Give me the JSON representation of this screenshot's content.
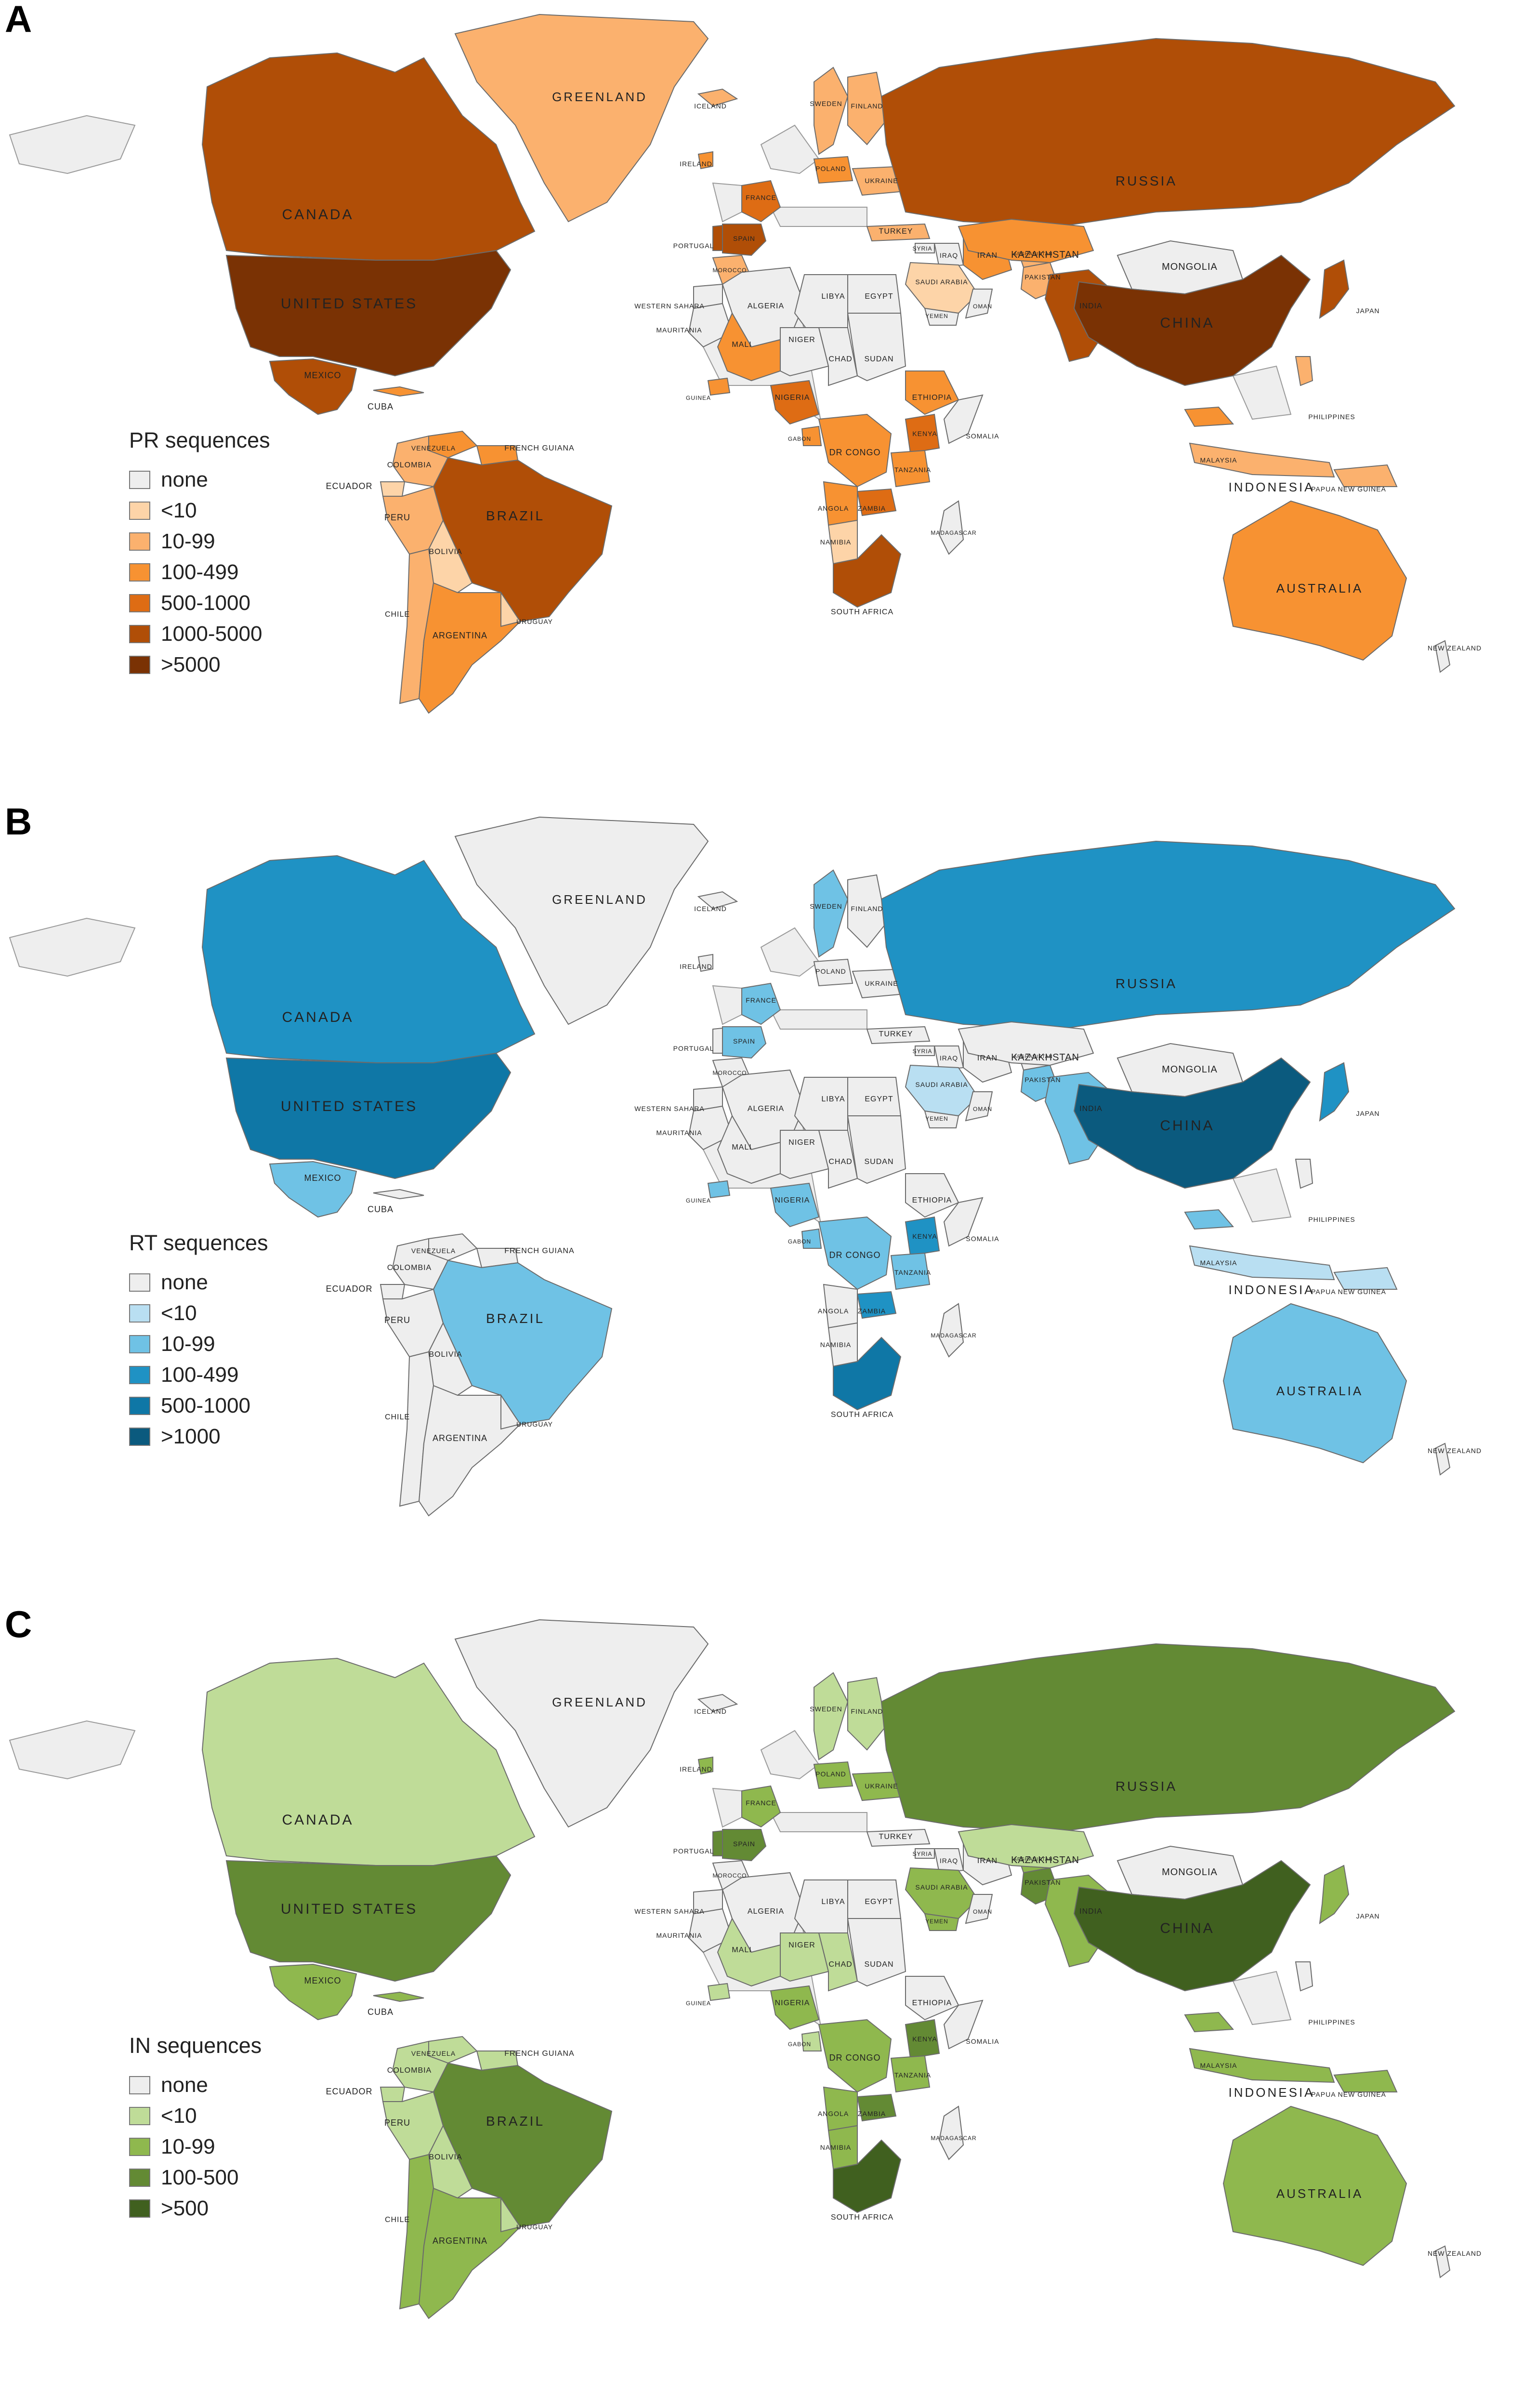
{
  "panels": [
    {
      "letter": "A",
      "legend_title": "PR sequences",
      "legend": [
        {
          "label": "none",
          "color": "#eeeeee"
        },
        {
          "label": "<10",
          "color": "#fdd4a8"
        },
        {
          "label": "10-99",
          "color": "#fbb16e"
        },
        {
          "label": "100-499",
          "color": "#f79232"
        },
        {
          "label": "500-1000",
          "color": "#de6c14"
        },
        {
          "label": "1000-5000",
          "color": "#b04e07"
        },
        {
          "label": ">5000",
          "color": "#7a3204"
        }
      ],
      "countries": [
        {
          "name": "GREENLAND",
          "cat": 2
        },
        {
          "name": "CANADA",
          "cat": 5
        },
        {
          "name": "UNITED STATES",
          "cat": 6
        },
        {
          "name": "MEXICO",
          "cat": 5
        },
        {
          "name": "CUBA",
          "cat": 3
        },
        {
          "name": "VENEZUELA",
          "cat": 3
        },
        {
          "name": "COLOMBIA",
          "cat": 2
        },
        {
          "name": "FRENCH GUIANA",
          "cat": 3
        },
        {
          "name": "ECUADOR",
          "cat": 1
        },
        {
          "name": "PERU",
          "cat": 2
        },
        {
          "name": "BRAZIL",
          "cat": 5
        },
        {
          "name": "BOLIVIA",
          "cat": 1
        },
        {
          "name": "CHILE",
          "cat": 2
        },
        {
          "name": "ARGENTINA",
          "cat": 3
        },
        {
          "name": "URUGUAY",
          "cat": 1
        },
        {
          "name": "ICELAND",
          "cat": 2
        },
        {
          "name": "IRELAND",
          "cat": 3
        },
        {
          "name": "SWEDEN",
          "cat": 2
        },
        {
          "name": "FINLAND",
          "cat": 2
        },
        {
          "name": "POLAND",
          "cat": 3
        },
        {
          "name": "UKRAINE",
          "cat": 2
        },
        {
          "name": "FRANCE",
          "cat": 4
        },
        {
          "name": "PORTUGAL",
          "cat": 5
        },
        {
          "name": "SPAIN",
          "cat": 5
        },
        {
          "name": "TURKEY",
          "cat": 2
        },
        {
          "name": "SYRIA",
          "cat": 0
        },
        {
          "name": "IRAQ",
          "cat": 0
        },
        {
          "name": "IRAN",
          "cat": 3
        },
        {
          "name": "SAUDI ARABIA",
          "cat": 1
        },
        {
          "name": "YEMEN",
          "cat": 0
        },
        {
          "name": "OMAN",
          "cat": 0
        },
        {
          "name": "AFGHANISTAN",
          "cat": 2
        },
        {
          "name": "PAKISTAN",
          "cat": 2
        },
        {
          "name": "INDIA",
          "cat": 5
        },
        {
          "name": "RUSSIA",
          "cat": 5
        },
        {
          "name": "KAZAKHSTAN",
          "cat": 3
        },
        {
          "name": "MONGOLIA",
          "cat": 0
        },
        {
          "name": "CHINA",
          "cat": 6
        },
        {
          "name": "JAPAN",
          "cat": 5
        },
        {
          "name": "PHILIPPINES",
          "cat": 2
        },
        {
          "name": "MALAYSIA",
          "cat": 3
        },
        {
          "name": "INDONESIA",
          "cat": 2
        },
        {
          "name": "PAPUA NEW GUINEA",
          "cat": 2
        },
        {
          "name": "AUSTRALIA",
          "cat": 3
        },
        {
          "name": "NEW ZEALAND",
          "cat": 0
        },
        {
          "name": "MOROCCO",
          "cat": 2
        },
        {
          "name": "WESTERN SAHARA",
          "cat": 0
        },
        {
          "name": "ALGERIA",
          "cat": 0
        },
        {
          "name": "LIBYA",
          "cat": 0
        },
        {
          "name": "EGYPT",
          "cat": 0
        },
        {
          "name": "MAURITANIA",
          "cat": 0
        },
        {
          "name": "MALI",
          "cat": 3
        },
        {
          "name": "NIGER",
          "cat": 0
        },
        {
          "name": "CHAD",
          "cat": 0
        },
        {
          "name": "SUDAN",
          "cat": 0
        },
        {
          "name": "NIGERIA",
          "cat": 4
        },
        {
          "name": "ETHIOPIA",
          "cat": 3
        },
        {
          "name": "SOMALIA",
          "cat": 0
        },
        {
          "name": "KENYA",
          "cat": 4
        },
        {
          "name": "DR CONGO",
          "cat": 3
        },
        {
          "name": "TANZANIA",
          "cat": 3
        },
        {
          "name": "ANGOLA",
          "cat": 3
        },
        {
          "name": "ZAMBIA",
          "cat": 4
        },
        {
          "name": "NAMIBIA",
          "cat": 1
        },
        {
          "name": "MADAGASCAR",
          "cat": 0
        },
        {
          "name": "SOUTH AFRICA",
          "cat": 5
        },
        {
          "name": "GABON",
          "cat": 3
        },
        {
          "name": "GUINEA",
          "cat": 3
        }
      ]
    },
    {
      "letter": "B",
      "legend_title": "RT sequences",
      "legend": [
        {
          "label": "none",
          "color": "#eeeeee"
        },
        {
          "label": "<10",
          "color": "#b9dff2"
        },
        {
          "label": "10-99",
          "color": "#6fc2e5"
        },
        {
          "label": "100-499",
          "color": "#1f92c4"
        },
        {
          "label": "500-1000",
          "color": "#0f77a6"
        },
        {
          "label": ">1000",
          "color": "#0b5a7e"
        }
      ],
      "countries": [
        {
          "name": "GREENLAND",
          "cat": 0
        },
        {
          "name": "CANADA",
          "cat": 3
        },
        {
          "name": "UNITED STATES",
          "cat": 4
        },
        {
          "name": "MEXICO",
          "cat": 2
        },
        {
          "name": "CUBA",
          "cat": 0
        },
        {
          "name": "VENEZUELA",
          "cat": 0
        },
        {
          "name": "COLOMBIA",
          "cat": 0
        },
        {
          "name": "FRENCH GUIANA",
          "cat": 0
        },
        {
          "name": "ECUADOR",
          "cat": 0
        },
        {
          "name": "PERU",
          "cat": 0
        },
        {
          "name": "BRAZIL",
          "cat": 2
        },
        {
          "name": "BOLIVIA",
          "cat": 0
        },
        {
          "name": "CHILE",
          "cat": 0
        },
        {
          "name": "ARGENTINA",
          "cat": 0
        },
        {
          "name": "URUGUAY",
          "cat": 0
        },
        {
          "name": "ICELAND",
          "cat": 0
        },
        {
          "name": "IRELAND",
          "cat": 0
        },
        {
          "name": "SWEDEN",
          "cat": 2
        },
        {
          "name": "FINLAND",
          "cat": 0
        },
        {
          "name": "POLAND",
          "cat": 0
        },
        {
          "name": "UKRAINE",
          "cat": 0
        },
        {
          "name": "FRANCE",
          "cat": 2
        },
        {
          "name": "PORTUGAL",
          "cat": 0
        },
        {
          "name": "SPAIN",
          "cat": 2
        },
        {
          "name": "TURKEY",
          "cat": 0
        },
        {
          "name": "SYRIA",
          "cat": 0
        },
        {
          "name": "IRAQ",
          "cat": 0
        },
        {
          "name": "IRAN",
          "cat": 0
        },
        {
          "name": "SAUDI ARABIA",
          "cat": 1
        },
        {
          "name": "YEMEN",
          "cat": 0
        },
        {
          "name": "OMAN",
          "cat": 0
        },
        {
          "name": "AFGHANISTAN",
          "cat": 0
        },
        {
          "name": "PAKISTAN",
          "cat": 2
        },
        {
          "name": "INDIA",
          "cat": 2
        },
        {
          "name": "RUSSIA",
          "cat": 3
        },
        {
          "name": "KAZAKHSTAN",
          "cat": 0
        },
        {
          "name": "MONGOLIA",
          "cat": 0
        },
        {
          "name": "CHINA",
          "cat": 5
        },
        {
          "name": "JAPAN",
          "cat": 3
        },
        {
          "name": "PHILIPPINES",
          "cat": 0
        },
        {
          "name": "MALAYSIA",
          "cat": 2
        },
        {
          "name": "INDONESIA",
          "cat": 1
        },
        {
          "name": "PAPUA NEW GUINEA",
          "cat": 1
        },
        {
          "name": "AUSTRALIA",
          "cat": 2
        },
        {
          "name": "NEW ZEALAND",
          "cat": 0
        },
        {
          "name": "MOROCCO",
          "cat": 0
        },
        {
          "name": "WESTERN SAHARA",
          "cat": 0
        },
        {
          "name": "ALGERIA",
          "cat": 0
        },
        {
          "name": "LIBYA",
          "cat": 0
        },
        {
          "name": "EGYPT",
          "cat": 0
        },
        {
          "name": "MAURITANIA",
          "cat": 0
        },
        {
          "name": "MALI",
          "cat": 0
        },
        {
          "name": "NIGER",
          "cat": 0
        },
        {
          "name": "CHAD",
          "cat": 0
        },
        {
          "name": "SUDAN",
          "cat": 0
        },
        {
          "name": "NIGERIA",
          "cat": 2
        },
        {
          "name": "ETHIOPIA",
          "cat": 0
        },
        {
          "name": "SOMALIA",
          "cat": 0
        },
        {
          "name": "KENYA",
          "cat": 3
        },
        {
          "name": "DR CONGO",
          "cat": 2
        },
        {
          "name": "TANZANIA",
          "cat": 2
        },
        {
          "name": "ANGOLA",
          "cat": 0
        },
        {
          "name": "ZAMBIA",
          "cat": 3
        },
        {
          "name": "NAMIBIA",
          "cat": 0
        },
        {
          "name": "MADAGASCAR",
          "cat": 0
        },
        {
          "name": "SOUTH AFRICA",
          "cat": 4
        },
        {
          "name": "GABON",
          "cat": 2
        },
        {
          "name": "GUINEA",
          "cat": 2
        }
      ]
    },
    {
      "letter": "C",
      "legend_title": "IN sequences",
      "legend": [
        {
          "label": "none",
          "color": "#eeeeee"
        },
        {
          "label": "<10",
          "color": "#bfdc98"
        },
        {
          "label": "10-99",
          "color": "#8fb84e"
        },
        {
          "label": "100-500",
          "color": "#638a34"
        },
        {
          "label": ">500",
          "color": "#40601f"
        }
      ],
      "countries": [
        {
          "name": "GREENLAND",
          "cat": 0
        },
        {
          "name": "CANADA",
          "cat": 1
        },
        {
          "name": "UNITED STATES",
          "cat": 3
        },
        {
          "name": "MEXICO",
          "cat": 2
        },
        {
          "name": "CUBA",
          "cat": 2
        },
        {
          "name": "VENEZUELA",
          "cat": 1
        },
        {
          "name": "COLOMBIA",
          "cat": 1
        },
        {
          "name": "FRENCH GUIANA",
          "cat": 1
        },
        {
          "name": "ECUADOR",
          "cat": 1
        },
        {
          "name": "PERU",
          "cat": 1
        },
        {
          "name": "BRAZIL",
          "cat": 3
        },
        {
          "name": "BOLIVIA",
          "cat": 1
        },
        {
          "name": "CHILE",
          "cat": 2
        },
        {
          "name": "ARGENTINA",
          "cat": 2
        },
        {
          "name": "URUGUAY",
          "cat": 1
        },
        {
          "name": "ICELAND",
          "cat": 0
        },
        {
          "name": "IRELAND",
          "cat": 2
        },
        {
          "name": "SWEDEN",
          "cat": 1
        },
        {
          "name": "FINLAND",
          "cat": 1
        },
        {
          "name": "POLAND",
          "cat": 2
        },
        {
          "name": "UKRAINE",
          "cat": 2
        },
        {
          "name": "FRANCE",
          "cat": 2
        },
        {
          "name": "PORTUGAL",
          "cat": 3
        },
        {
          "name": "SPAIN",
          "cat": 3
        },
        {
          "name": "TURKEY",
          "cat": 0
        },
        {
          "name": "SYRIA",
          "cat": 0
        },
        {
          "name": "IRAQ",
          "cat": 0
        },
        {
          "name": "IRAN",
          "cat": 0
        },
        {
          "name": "SAUDI ARABIA",
          "cat": 2
        },
        {
          "name": "YEMEN",
          "cat": 2
        },
        {
          "name": "OMAN",
          "cat": 0
        },
        {
          "name": "AFGHANISTAN",
          "cat": 2
        },
        {
          "name": "PAKISTAN",
          "cat": 3
        },
        {
          "name": "INDIA",
          "cat": 2
        },
        {
          "name": "RUSSIA",
          "cat": 3
        },
        {
          "name": "KAZAKHSTAN",
          "cat": 1
        },
        {
          "name": "MONGOLIA",
          "cat": 0
        },
        {
          "name": "CHINA",
          "cat": 4
        },
        {
          "name": "JAPAN",
          "cat": 2
        },
        {
          "name": "PHILIPPINES",
          "cat": 0
        },
        {
          "name": "MALAYSIA",
          "cat": 2
        },
        {
          "name": "INDONESIA",
          "cat": 2
        },
        {
          "name": "PAPUA NEW GUINEA",
          "cat": 2
        },
        {
          "name": "AUSTRALIA",
          "cat": 2
        },
        {
          "name": "NEW ZEALAND",
          "cat": 0
        },
        {
          "name": "MOROCCO",
          "cat": 0
        },
        {
          "name": "WESTERN SAHARA",
          "cat": 0
        },
        {
          "name": "ALGERIA",
          "cat": 0
        },
        {
          "name": "LIBYA",
          "cat": 0
        },
        {
          "name": "EGYPT",
          "cat": 0
        },
        {
          "name": "MAURITANIA",
          "cat": 0
        },
        {
          "name": "MALI",
          "cat": 1
        },
        {
          "name": "NIGER",
          "cat": 1
        },
        {
          "name": "CHAD",
          "cat": 1
        },
        {
          "name": "SUDAN",
          "cat": 0
        },
        {
          "name": "NIGERIA",
          "cat": 2
        },
        {
          "name": "ETHIOPIA",
          "cat": 0
        },
        {
          "name": "SOMALIA",
          "cat": 0
        },
        {
          "name": "KENYA",
          "cat": 3
        },
        {
          "name": "DR CONGO",
          "cat": 2
        },
        {
          "name": "TANZANIA",
          "cat": 2
        },
        {
          "name": "ANGOLA",
          "cat": 2
        },
        {
          "name": "ZAMBIA",
          "cat": 3
        },
        {
          "name": "NAMIBIA",
          "cat": 2
        },
        {
          "name": "MADAGASCAR",
          "cat": 0
        },
        {
          "name": "SOUTH AFRICA",
          "cat": 4
        },
        {
          "name": "GABON",
          "cat": 1
        },
        {
          "name": "GUINEA",
          "cat": 1
        }
      ]
    }
  ]
}
